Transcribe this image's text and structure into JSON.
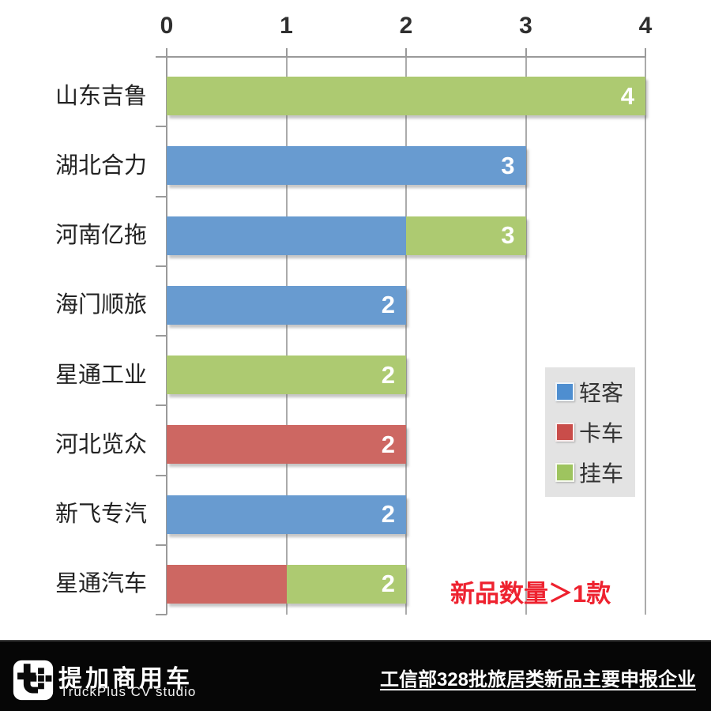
{
  "chart_data": {
    "type": "bar",
    "orientation": "horizontal",
    "stacked": true,
    "title": "",
    "xlabel": "",
    "ylabel": "",
    "xlim": [
      0,
      4
    ],
    "x_ticks": [
      "0",
      "1",
      "2",
      "3",
      "4"
    ],
    "grid": true,
    "legend_position": "right-middle",
    "categories": [
      "山东吉鲁",
      "湖北合力",
      "河南亿拖",
      "海门顺旅",
      "星通工业",
      "河北览众",
      "新飞专汽",
      "星通汽车"
    ],
    "series": [
      {
        "name": "轻客",
        "color_key": "blue",
        "values": [
          0,
          3,
          2,
          2,
          0,
          0,
          2,
          0
        ]
      },
      {
        "name": "卡车",
        "color_key": "red",
        "values": [
          0,
          0,
          0,
          0,
          0,
          2,
          0,
          1
        ]
      },
      {
        "name": "挂车",
        "color_key": "green",
        "values": [
          4,
          0,
          1,
          0,
          2,
          0,
          0,
          1
        ]
      }
    ],
    "totals": [
      "4",
      "3",
      "3",
      "2",
      "2",
      "2",
      "2",
      "2"
    ],
    "colors": {
      "blue": "#689bd0",
      "red": "#cd6762",
      "green": "#adca71"
    }
  },
  "legend": {
    "items": [
      {
        "label": "轻客",
        "color": "#4e8ed0"
      },
      {
        "label": "卡车",
        "color": "#c94d4a"
      },
      {
        "label": "挂车",
        "color": "#9ec45f"
      }
    ]
  },
  "annotation": {
    "text": "新品数量＞1款",
    "color": "#ee222f"
  },
  "footer": {
    "brand_cn": "提加商用车",
    "brand_en": "TruckPlus CV studio",
    "caption": "工信部328批旅居类新品主要申报企业"
  }
}
